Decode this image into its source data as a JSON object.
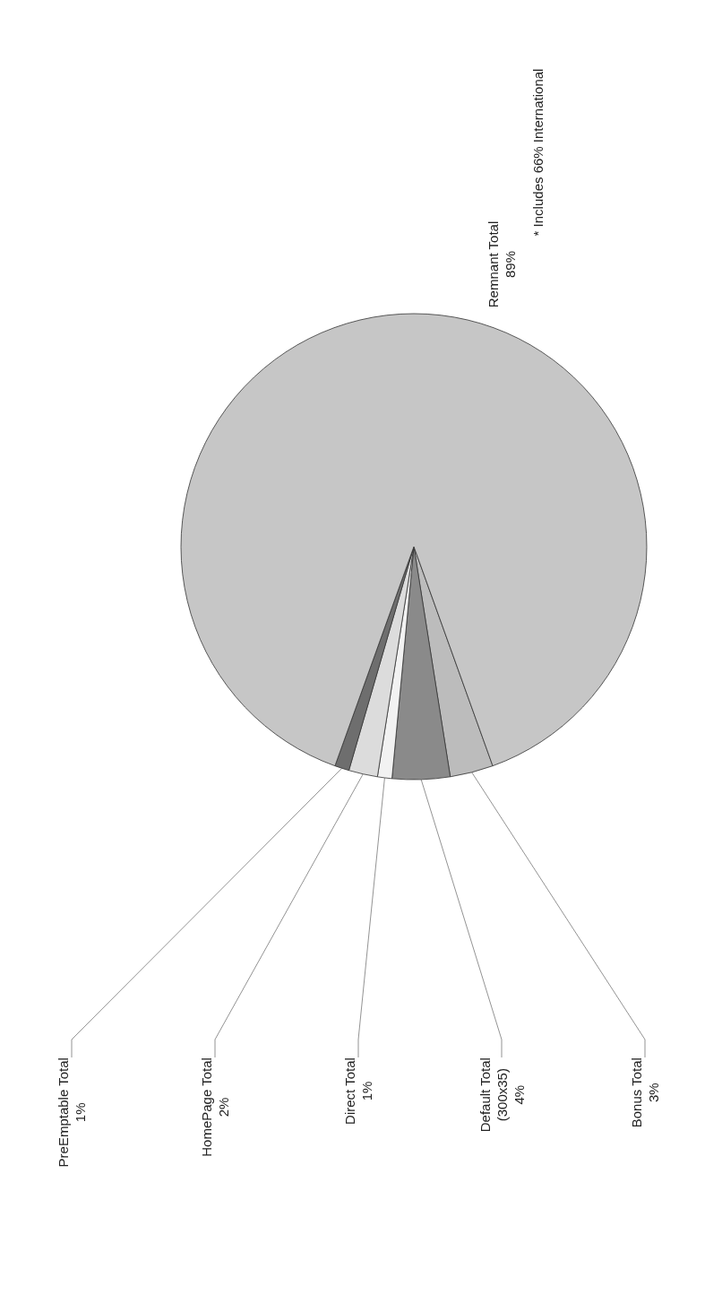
{
  "chart_data": {
    "type": "pie",
    "categories": [
      "Bonus Total",
      "Default Total (300x35)",
      "Direct Total",
      "HomePage Total",
      "PreEmptable Total",
      "Remnant Total"
    ],
    "values": [
      3,
      4,
      1,
      2,
      1,
      89
    ],
    "value_labels": [
      "3%",
      "4%",
      "1%",
      "2%",
      "1%",
      "89%"
    ],
    "colors": [
      "#bcbcbc",
      "#8a8a8a",
      "#f2f2f2",
      "#dcdcdc",
      "#6e6e6e",
      "#c6c6c6"
    ],
    "annotations": [
      "* Includes 66% International"
    ],
    "legend": false
  }
}
